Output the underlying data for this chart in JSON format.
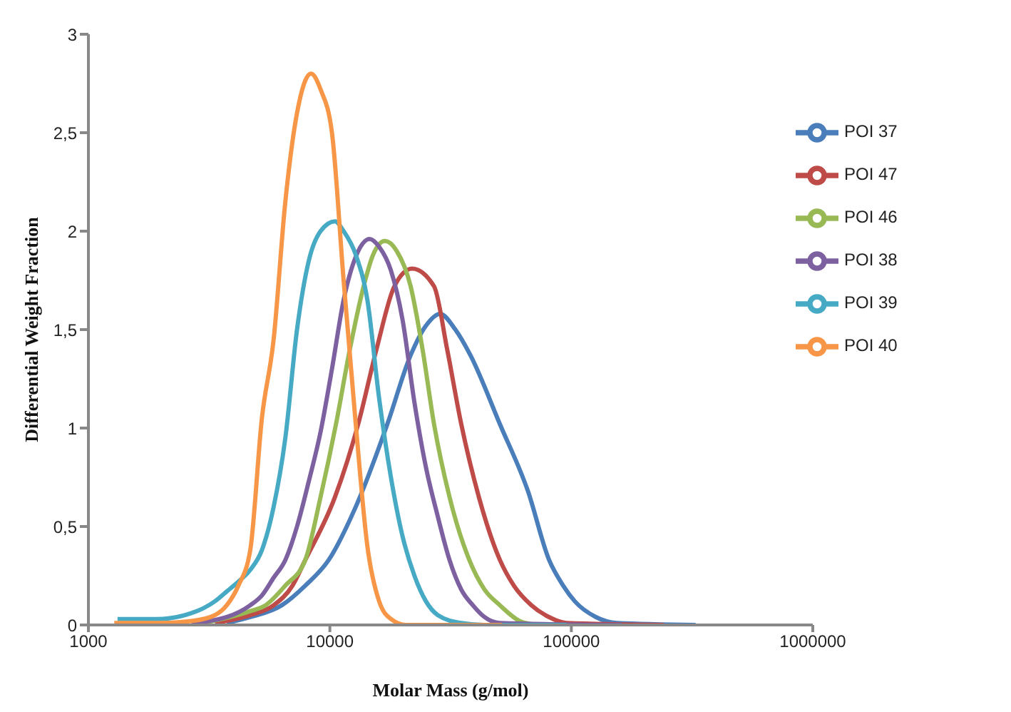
{
  "chart_data": {
    "type": "line",
    "xlabel": "Molar Mass (g/mol)",
    "ylabel": "Differential Weight Fraction",
    "log": "x",
    "xlim": [
      1000,
      1000000
    ],
    "xticks": [
      1000,
      10000,
      100000,
      1000000
    ],
    "ylim": [
      0,
      3
    ],
    "yticks": [
      0,
      {
        "value": 0.5,
        "label": "0,5"
      },
      1,
      {
        "value": 1.5,
        "label": "1,5"
      },
      2,
      {
        "value": 2.5,
        "label": "2,5"
      },
      3
    ],
    "legend": "top right",
    "series": [
      {
        "name": "POI 37",
        "color": "#4a7ebb",
        "x": [
          3740,
          4680,
          6320,
          7910,
          9890,
          12800,
          17300,
          21600,
          25000,
          28600,
          33100,
          38200,
          50600,
          66100,
          80900,
          92500,
          103400,
          126500,
          154600,
          327000
        ],
        "values": [
          0.01,
          0.04,
          0.1,
          0.2,
          0.33,
          0.6,
          1.02,
          1.37,
          1.52,
          1.58,
          1.5,
          1.37,
          1.02,
          0.68,
          0.33,
          0.2,
          0.12,
          0.04,
          0.01,
          0
        ]
      },
      {
        "name": "POI 47",
        "color": "#be4b48",
        "x": [
          3340,
          4680,
          5850,
          7000,
          7910,
          10500,
          13100,
          15600,
          18500,
          21900,
          27000,
          30600,
          35000,
          41400,
          50600,
          57800,
          68400,
          80900,
          95600,
          241800
        ],
        "values": [
          0.01,
          0.05,
          0.1,
          0.2,
          0.33,
          0.65,
          1.02,
          1.4,
          1.72,
          1.81,
          1.72,
          1.4,
          1.02,
          0.65,
          0.33,
          0.2,
          0.1,
          0.04,
          0.01,
          0
        ]
      },
      {
        "name": "POI 46",
        "color": "#98b954",
        "x": [
          2990,
          4680,
          5410,
          6540,
          7910,
          9150,
          10600,
          12100,
          13800,
          15100,
          16900,
          18900,
          21600,
          24200,
          27000,
          31300,
          37800,
          43700,
          50600,
          61100,
          72300
        ],
        "values": [
          0.01,
          0.07,
          0.1,
          0.2,
          0.33,
          0.65,
          1.02,
          1.4,
          1.72,
          1.88,
          1.95,
          1.9,
          1.72,
          1.4,
          1.02,
          0.65,
          0.33,
          0.18,
          0.1,
          0.02,
          0
        ]
      },
      {
        "name": "POI 38",
        "color": "#7d60a0",
        "x": [
          2670,
          3740,
          4680,
          5230,
          5850,
          6540,
          7310,
          8180,
          9150,
          10200,
          11400,
          12800,
          14600,
          16000,
          17900,
          20000,
          22400,
          25000,
          28000,
          31300,
          35000,
          39100,
          43700,
          50600,
          161700
        ],
        "values": [
          0.01,
          0.04,
          0.1,
          0.15,
          0.24,
          0.33,
          0.5,
          0.73,
          0.98,
          1.3,
          1.65,
          1.87,
          1.96,
          1.92,
          1.8,
          1.55,
          1.13,
          0.8,
          0.55,
          0.33,
          0.18,
          0.1,
          0.04,
          0.01,
          0
        ]
      },
      {
        "name": "POI 39",
        "color": "#46aac5",
        "x": [
          1320,
          1910,
          2670,
          3340,
          3740,
          4180,
          4680,
          5230,
          5850,
          6540,
          7310,
          8180,
          9150,
          10500,
          11400,
          12800,
          14300,
          16000,
          17900,
          20000,
          22400,
          25000,
          28000,
          35000,
          43700,
          95600
        ],
        "values": [
          0.03,
          0.03,
          0.06,
          0.12,
          0.17,
          0.22,
          0.28,
          0.38,
          0.6,
          0.95,
          1.5,
          1.85,
          2.0,
          2.05,
          2.0,
          1.88,
          1.65,
          1.15,
          0.75,
          0.45,
          0.25,
          0.12,
          0.05,
          0.01,
          0,
          0
        ]
      },
      {
        "name": "POI 40",
        "color": "#f79646",
        "x": [
          1280,
          1910,
          2670,
          3340,
          3740,
          4180,
          4680,
          5230,
          5850,
          6540,
          7310,
          8360,
          9150,
          10200,
          11400,
          12800,
          14300,
          16000,
          17900,
          20700,
          51700
        ],
        "values": [
          0.01,
          0.01,
          0.02,
          0.05,
          0.1,
          0.2,
          0.38,
          1.05,
          1.45,
          2.15,
          2.6,
          2.8,
          2.72,
          2.5,
          1.75,
          1.02,
          0.4,
          0.12,
          0.03,
          0,
          0
        ]
      }
    ]
  }
}
